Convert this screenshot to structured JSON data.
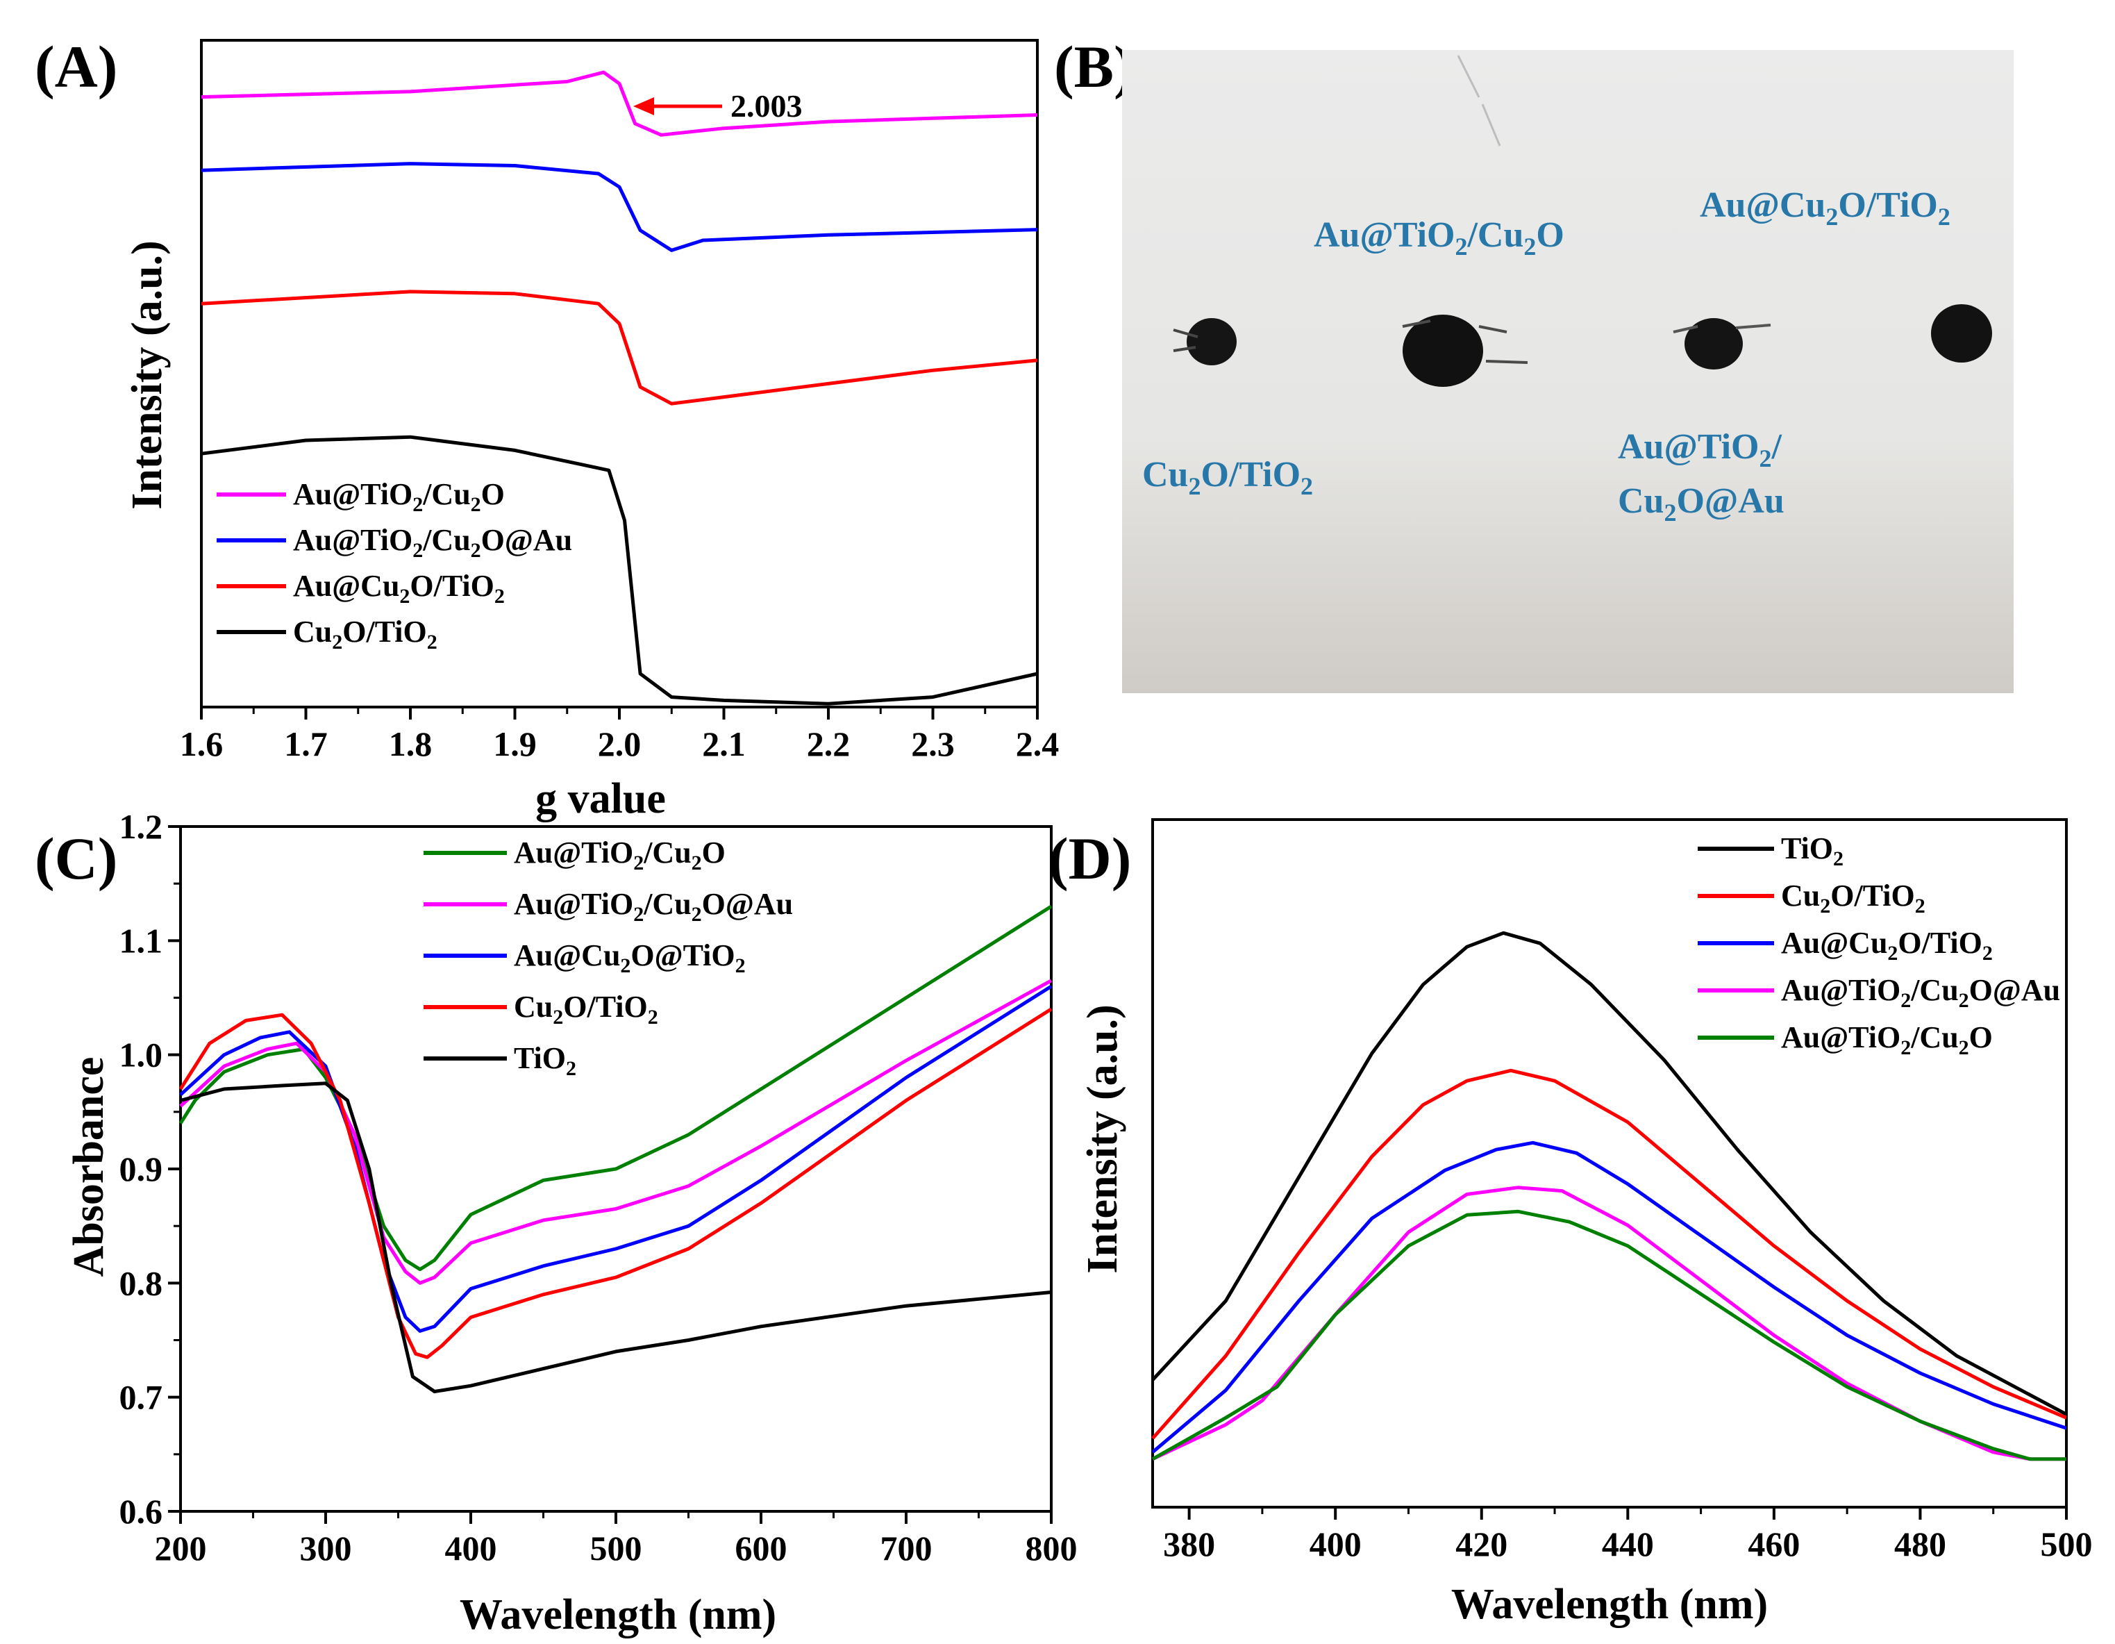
{
  "panels": {
    "A": {
      "label": "(A)"
    },
    "B": {
      "label": "(B)",
      "photo_labels": [
        {
          "id": "top-center",
          "text": "Au@TiO2/Cu2O"
        },
        {
          "id": "top-right",
          "text": "Au@Cu2O/TiO2"
        },
        {
          "id": "bottom-left",
          "text": "Cu2O/TiO2"
        },
        {
          "id": "bottom-right-1",
          "text": "Au@TiO2/"
        },
        {
          "id": "bottom-right-2",
          "text": "Cu2O@Au"
        }
      ]
    },
    "C": {
      "label": "(C)"
    },
    "D": {
      "label": "(D)"
    }
  },
  "chart_data": [
    {
      "id": "A",
      "type": "line",
      "title": "",
      "xlabel": "g value",
      "ylabel": "Intensity (a.u.)",
      "xlim": [
        1.6,
        2.4
      ],
      "xticks": [
        1.6,
        1.7,
        1.8,
        1.9,
        2.0,
        2.1,
        2.2,
        2.3,
        2.4
      ],
      "ylim": [
        0,
        100
      ],
      "yticks_visible": false,
      "annotation": {
        "text": "2.003",
        "x": 2.003,
        "y": 93.5
      },
      "series": [
        {
          "name": "Au@TiO2/Cu2O",
          "color": "#ff00ff",
          "x": [
            1.6,
            1.8,
            1.95,
            1.985,
            2.0,
            2.015,
            2.04,
            2.1,
            2.2,
            2.3,
            2.4
          ],
          "y": [
            91.5,
            92.3,
            93.8,
            95.2,
            93.5,
            87.5,
            85.8,
            86.8,
            87.8,
            88.3,
            88.8
          ]
        },
        {
          "name": "Au@TiO2/Cu2O@Au",
          "color": "#0000ff",
          "x": [
            1.6,
            1.8,
            1.9,
            1.98,
            2.0,
            2.02,
            2.05,
            2.08,
            2.2,
            2.3,
            2.4
          ],
          "y": [
            80.5,
            81.5,
            81.2,
            80.0,
            78.0,
            71.5,
            68.5,
            70.0,
            70.8,
            71.2,
            71.6
          ]
        },
        {
          "name": "Au@Cu2O/TiO2",
          "color": "#ff0000",
          "x": [
            1.6,
            1.8,
            1.9,
            1.98,
            2.0,
            2.02,
            2.05,
            2.1,
            2.2,
            2.3,
            2.4
          ],
          "y": [
            60.5,
            62.3,
            62.0,
            60.5,
            57.5,
            48.0,
            45.5,
            46.5,
            48.5,
            50.5,
            52.0
          ]
        },
        {
          "name": "Cu2O/TiO2",
          "color": "#000000",
          "x": [
            1.6,
            1.7,
            1.8,
            1.9,
            1.96,
            1.99,
            2.005,
            2.02,
            2.05,
            2.1,
            2.2,
            2.3,
            2.4
          ],
          "y": [
            38.0,
            40.0,
            40.5,
            38.5,
            36.5,
            35.5,
            28.0,
            5.0,
            1.5,
            1.0,
            0.5,
            1.5,
            5.0
          ]
        }
      ],
      "legend_position": "bottom-left"
    },
    {
      "id": "C",
      "type": "line",
      "title": "",
      "xlabel": "Wavelength (nm)",
      "ylabel": "Absorbance",
      "xlim": [
        200,
        800
      ],
      "xticks": [
        200,
        300,
        400,
        500,
        600,
        700,
        800
      ],
      "ylim": [
        0.6,
        1.2
      ],
      "yticks": [
        0.6,
        0.7,
        0.8,
        0.9,
        1.0,
        1.1,
        1.2
      ],
      "series": [
        {
          "name": "Au@TiO2/Cu2O",
          "color": "#008000",
          "x": [
            200,
            210,
            230,
            260,
            285,
            300,
            320,
            340,
            355,
            365,
            375,
            400,
            450,
            500,
            550,
            600,
            700,
            800
          ],
          "y": [
            0.94,
            0.96,
            0.985,
            1.0,
            1.005,
            0.98,
            0.93,
            0.85,
            0.82,
            0.812,
            0.82,
            0.86,
            0.89,
            0.9,
            0.93,
            0.97,
            1.05,
            1.13
          ]
        },
        {
          "name": "Au@TiO2/Cu2O@Au",
          "color": "#ff00ff",
          "x": [
            200,
            230,
            260,
            280,
            300,
            320,
            340,
            355,
            365,
            375,
            400,
            450,
            500,
            550,
            600,
            700,
            800
          ],
          "y": [
            0.955,
            0.99,
            1.005,
            1.01,
            0.985,
            0.93,
            0.84,
            0.81,
            0.8,
            0.805,
            0.835,
            0.855,
            0.865,
            0.885,
            0.92,
            0.995,
            1.065
          ]
        },
        {
          "name": "Au@Cu2O@TiO2",
          "color": "#0000ff",
          "x": [
            200,
            230,
            255,
            275,
            300,
            320,
            340,
            355,
            365,
            375,
            400,
            450,
            500,
            550,
            600,
            700,
            800
          ],
          "y": [
            0.965,
            1.0,
            1.015,
            1.02,
            0.99,
            0.92,
            0.82,
            0.77,
            0.758,
            0.762,
            0.795,
            0.815,
            0.83,
            0.85,
            0.89,
            0.98,
            1.06
          ]
        },
        {
          "name": "Cu2O/TiO2",
          "color": "#ff0000",
          "x": [
            200,
            220,
            245,
            270,
            290,
            310,
            330,
            350,
            362,
            370,
            380,
            400,
            450,
            500,
            550,
            600,
            700,
            800
          ],
          "y": [
            0.97,
            1.01,
            1.03,
            1.035,
            1.01,
            0.96,
            0.87,
            0.77,
            0.738,
            0.735,
            0.745,
            0.77,
            0.79,
            0.805,
            0.83,
            0.87,
            0.96,
            1.04
          ]
        },
        {
          "name": "TiO2",
          "color": "#000000",
          "x": [
            200,
            230,
            270,
            300,
            315,
            330,
            345,
            360,
            375,
            400,
            450,
            500,
            550,
            600,
            700,
            800
          ],
          "y": [
            0.96,
            0.97,
            0.973,
            0.975,
            0.96,
            0.9,
            0.8,
            0.718,
            0.705,
            0.71,
            0.725,
            0.74,
            0.75,
            0.762,
            0.78,
            0.792
          ]
        }
      ],
      "legend_position": "top-center"
    },
    {
      "id": "D",
      "type": "line",
      "title": "",
      "xlabel": "Wavelength (nm)",
      "ylabel": "Intensity (a.u.)",
      "xlim": [
        375,
        500
      ],
      "xticks": [
        380,
        400,
        420,
        440,
        460,
        480,
        500
      ],
      "ylim": [
        0,
        100
      ],
      "yticks_visible": false,
      "series": [
        {
          "name": "TiO2",
          "color": "#000000",
          "x": [
            375,
            385,
            395,
            405,
            412,
            418,
            423,
            428,
            435,
            445,
            455,
            465,
            475,
            485,
            500
          ],
          "y": [
            18.5,
            30.0,
            48.0,
            66.0,
            76.0,
            81.5,
            83.5,
            82.0,
            76.0,
            65.0,
            52.0,
            40.0,
            30.0,
            22.0,
            13.5
          ]
        },
        {
          "name": "Cu2O/TiO2",
          "color": "#ff0000",
          "x": [
            375,
            385,
            395,
            405,
            412,
            418,
            424,
            430,
            440,
            450,
            460,
            470,
            480,
            490,
            500
          ],
          "y": [
            10.0,
            22.0,
            37.0,
            51.0,
            58.5,
            62.0,
            63.5,
            62.0,
            56.0,
            47.0,
            38.0,
            30.0,
            23.0,
            17.5,
            13.0
          ]
        },
        {
          "name": "Au@Cu2O/TiO2",
          "color": "#0000ff",
          "x": [
            375,
            385,
            395,
            405,
            415,
            422,
            427,
            433,
            440,
            450,
            460,
            470,
            480,
            490,
            500
          ],
          "y": [
            8.0,
            17.0,
            30.0,
            42.0,
            49.0,
            52.0,
            53.0,
            51.5,
            47.0,
            39.5,
            32.0,
            25.0,
            19.5,
            15.0,
            11.5
          ]
        },
        {
          "name": "Au@TiO2/Cu2O@Au",
          "color": "#ff00ff",
          "x": [
            375,
            385,
            390,
            400,
            410,
            418,
            425,
            431,
            440,
            450,
            460,
            470,
            480,
            490,
            495,
            500
          ],
          "y": [
            7.0,
            12.0,
            15.5,
            28.0,
            40.0,
            45.5,
            46.5,
            46.0,
            41.0,
            33.0,
            25.0,
            18.0,
            12.5,
            8.0,
            7.0,
            7.0
          ]
        },
        {
          "name": "Au@TiO2/Cu2O",
          "color": "#008000",
          "x": [
            375,
            385,
            392,
            400,
            410,
            418,
            425,
            432,
            440,
            450,
            460,
            470,
            480,
            490,
            495,
            500
          ],
          "y": [
            7.0,
            13.0,
            17.5,
            28.0,
            38.0,
            42.5,
            43.0,
            41.5,
            38.0,
            31.0,
            24.0,
            17.5,
            12.5,
            8.5,
            7.0,
            7.0
          ]
        }
      ],
      "legend_position": "top-right"
    }
  ]
}
